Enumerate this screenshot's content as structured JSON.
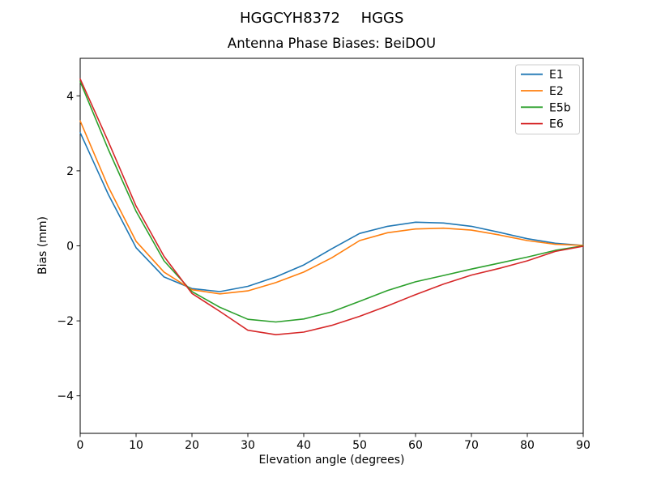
{
  "figure": {
    "background": "#ffffff",
    "spine_color": "#000000"
  },
  "chart_data": {
    "type": "line",
    "suptitle_parts": [
      "HGGCYH8372",
      "HGGS"
    ],
    "title": "Antenna Phase Biases: BeiDOU",
    "xlabel": "Elevation angle (degrees)",
    "ylabel": "Bias (mm)",
    "xlim": [
      0,
      90
    ],
    "ylim": [
      -5,
      5
    ],
    "x_ticks": [
      0,
      10,
      20,
      30,
      40,
      50,
      60,
      70,
      80,
      90
    ],
    "y_ticks": [
      -4,
      -2,
      0,
      2,
      4
    ],
    "grid": false,
    "legend_position": "upper right",
    "x": [
      0,
      5,
      10,
      15,
      20,
      25,
      30,
      35,
      40,
      45,
      50,
      55,
      60,
      65,
      70,
      75,
      80,
      85,
      90
    ],
    "series": [
      {
        "name": "E1",
        "color": "#1f77b4",
        "values": [
          3.02,
          1.38,
          -0.05,
          -0.83,
          -1.14,
          -1.22,
          -1.08,
          -0.83,
          -0.51,
          -0.08,
          0.33,
          0.52,
          0.63,
          0.61,
          0.52,
          0.36,
          0.19,
          0.07,
          0.01
        ]
      },
      {
        "name": "E2",
        "color": "#ff7f0e",
        "values": [
          3.33,
          1.58,
          0.12,
          -0.7,
          -1.17,
          -1.28,
          -1.2,
          -0.98,
          -0.7,
          -0.32,
          0.14,
          0.35,
          0.45,
          0.47,
          0.42,
          0.29,
          0.14,
          0.04,
          0.01
        ]
      },
      {
        "name": "E5b",
        "color": "#2ca02c",
        "values": [
          4.38,
          2.58,
          0.92,
          -0.4,
          -1.22,
          -1.64,
          -1.96,
          -2.03,
          -1.95,
          -1.76,
          -1.48,
          -1.19,
          -0.96,
          -0.79,
          -0.62,
          -0.46,
          -0.3,
          -0.12,
          0.0
        ]
      },
      {
        "name": "E6",
        "color": "#d62728",
        "values": [
          4.45,
          2.79,
          1.06,
          -0.28,
          -1.27,
          -1.75,
          -2.25,
          -2.37,
          -2.3,
          -2.12,
          -1.88,
          -1.6,
          -1.3,
          -1.02,
          -0.78,
          -0.6,
          -0.4,
          -0.15,
          -0.01
        ]
      }
    ]
  }
}
